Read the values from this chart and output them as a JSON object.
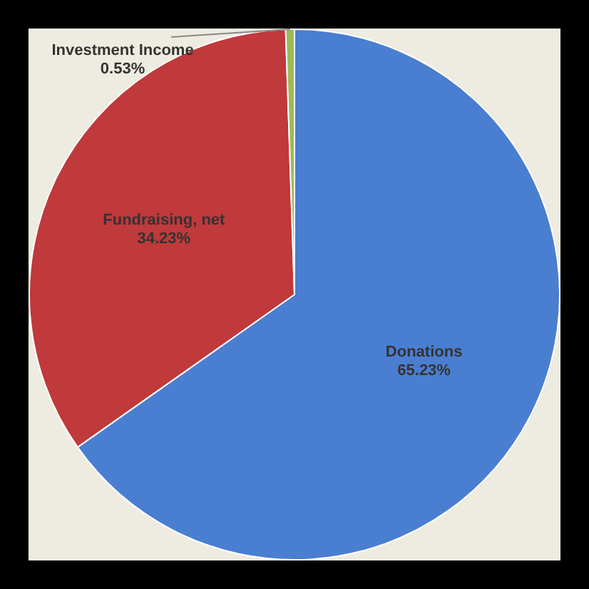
{
  "chart_data": {
    "type": "pie",
    "categories": [
      "Donations",
      "Fundraising, net",
      "Investment Income"
    ],
    "values": [
      65.23,
      34.23,
      0.53
    ],
    "colors": [
      "#4a7ed0",
      "#c0393b",
      "#9bbb59"
    ],
    "value_labels": [
      "65.23%",
      "34.23%",
      "0.53%"
    ],
    "legend": false
  }
}
